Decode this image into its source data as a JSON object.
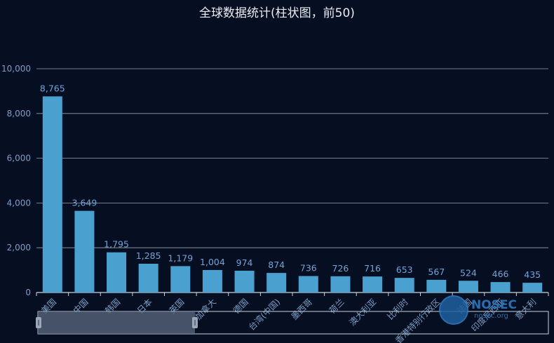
{
  "chart_data": {
    "type": "bar",
    "title": "全球数据统计(柱状图，前50)",
    "categories": [
      "美国",
      "中国",
      "韩国",
      "日本",
      "英国",
      "加拿大",
      "德国",
      "台湾(中国)",
      "墨西哥",
      "荷兰",
      "澳大利亚",
      "比利时",
      "香港特别行政区",
      "法国",
      "印度尼西亚",
      "意大利"
    ],
    "values": [
      8765,
      3649,
      1795,
      1285,
      1179,
      1004,
      974,
      874,
      736,
      726,
      716,
      653,
      567,
      524,
      466,
      435
    ],
    "data_labels": [
      "8,765",
      "3,649",
      "1,795",
      "1,285",
      "1,179",
      "1,004",
      "974",
      "874",
      "736",
      "726",
      "716",
      "653",
      "567",
      "524",
      "466",
      "435"
    ],
    "yticks": [
      "0",
      "2,000",
      "4,000",
      "6,000",
      "8,000",
      "10,000"
    ],
    "ylim": [
      0,
      10000
    ],
    "grid": true,
    "bar_color": "#4aa0cf",
    "axis_color": "#c9d3dd",
    "label_color": "#7c9dc4"
  },
  "watermark": {
    "text": "NOSEC",
    "sub": "nosec.org"
  }
}
